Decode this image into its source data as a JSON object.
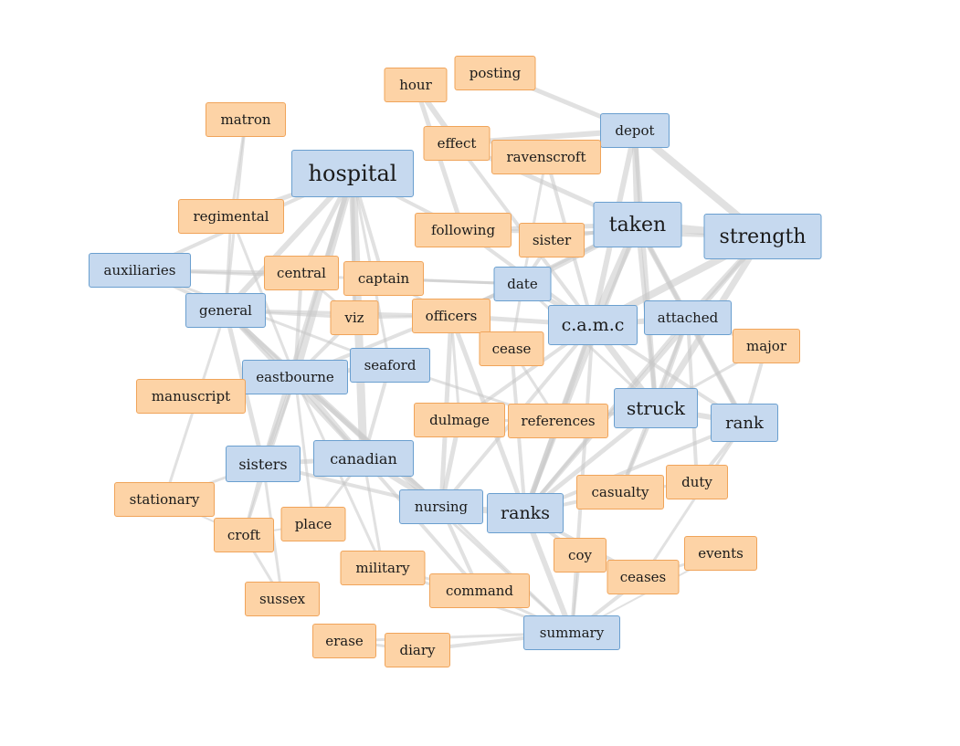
{
  "graph": {
    "colors": {
      "orange_fill": "#fdd3a6",
      "orange_border": "#f0a45a",
      "blue_fill": "#c6d9ef",
      "blue_border": "#6a9fcf",
      "edge": "#c8c8c8"
    },
    "nodes": [
      {
        "id": "hour",
        "label": "hour",
        "group": "orange"
      },
      {
        "id": "posting",
        "label": "posting",
        "group": "orange"
      },
      {
        "id": "matron",
        "label": "matron",
        "group": "orange"
      },
      {
        "id": "effect",
        "label": "effect",
        "group": "orange"
      },
      {
        "id": "depot",
        "label": "depot",
        "group": "blue"
      },
      {
        "id": "ravenscroft",
        "label": "ravenscroft",
        "group": "orange"
      },
      {
        "id": "hospital",
        "label": "hospital",
        "group": "blue"
      },
      {
        "id": "regimental",
        "label": "regimental",
        "group": "orange"
      },
      {
        "id": "following",
        "label": "following",
        "group": "orange"
      },
      {
        "id": "sister",
        "label": "sister",
        "group": "orange"
      },
      {
        "id": "taken",
        "label": "taken",
        "group": "blue"
      },
      {
        "id": "strength",
        "label": "strength",
        "group": "blue"
      },
      {
        "id": "auxiliaries",
        "label": "auxiliaries",
        "group": "blue"
      },
      {
        "id": "central",
        "label": "central",
        "group": "orange"
      },
      {
        "id": "captain",
        "label": "captain",
        "group": "orange"
      },
      {
        "id": "date",
        "label": "date",
        "group": "blue"
      },
      {
        "id": "general",
        "label": "general",
        "group": "blue"
      },
      {
        "id": "viz",
        "label": "viz",
        "group": "orange"
      },
      {
        "id": "officers",
        "label": "officers",
        "group": "orange"
      },
      {
        "id": "camc",
        "label": "c.a.m.c",
        "group": "blue"
      },
      {
        "id": "attached",
        "label": "attached",
        "group": "blue"
      },
      {
        "id": "major",
        "label": "major",
        "group": "orange"
      },
      {
        "id": "cease",
        "label": "cease",
        "group": "orange"
      },
      {
        "id": "seaford",
        "label": "seaford",
        "group": "blue"
      },
      {
        "id": "eastbourne",
        "label": "eastbourne",
        "group": "blue"
      },
      {
        "id": "manuscript",
        "label": "manuscript",
        "group": "orange"
      },
      {
        "id": "dulmage",
        "label": "dulmage",
        "group": "orange"
      },
      {
        "id": "references",
        "label": "references",
        "group": "orange"
      },
      {
        "id": "struck",
        "label": "struck",
        "group": "blue"
      },
      {
        "id": "rank",
        "label": "rank",
        "group": "blue"
      },
      {
        "id": "sisters",
        "label": "sisters",
        "group": "blue"
      },
      {
        "id": "canadian",
        "label": "canadian",
        "group": "blue"
      },
      {
        "id": "stationary",
        "label": "stationary",
        "group": "orange"
      },
      {
        "id": "casualty",
        "label": "casualty",
        "group": "orange"
      },
      {
        "id": "duty",
        "label": "duty",
        "group": "orange"
      },
      {
        "id": "nursing",
        "label": "nursing",
        "group": "blue"
      },
      {
        "id": "ranks",
        "label": "ranks",
        "group": "blue"
      },
      {
        "id": "croft",
        "label": "croft",
        "group": "orange"
      },
      {
        "id": "place",
        "label": "place",
        "group": "orange"
      },
      {
        "id": "coy",
        "label": "coy",
        "group": "orange"
      },
      {
        "id": "events",
        "label": "events",
        "group": "orange"
      },
      {
        "id": "ceases",
        "label": "ceases",
        "group": "orange"
      },
      {
        "id": "military",
        "label": "military",
        "group": "orange"
      },
      {
        "id": "command",
        "label": "command",
        "group": "orange"
      },
      {
        "id": "sussex",
        "label": "sussex",
        "group": "orange"
      },
      {
        "id": "summary",
        "label": "summary",
        "group": "blue"
      },
      {
        "id": "erase",
        "label": "erase",
        "group": "orange"
      },
      {
        "id": "diary",
        "label": "diary",
        "group": "orange"
      }
    ],
    "edges": [
      [
        "hour",
        "effect",
        6
      ],
      [
        "hour",
        "following",
        5
      ],
      [
        "posting",
        "depot",
        5
      ],
      [
        "effect",
        "depot",
        6
      ],
      [
        "effect",
        "taken",
        5
      ],
      [
        "effect",
        "camc",
        4
      ],
      [
        "matron",
        "regimental",
        3
      ],
      [
        "matron",
        "general",
        3
      ],
      [
        "ravenscroft",
        "camc",
        4
      ],
      [
        "ravenscroft",
        "date",
        3
      ],
      [
        "depot",
        "taken",
        7
      ],
      [
        "depot",
        "strength",
        8
      ],
      [
        "depot",
        "camc",
        6
      ],
      [
        "depot",
        "struck",
        5
      ],
      [
        "hospital",
        "regimental",
        5
      ],
      [
        "hospital",
        "auxiliaries",
        4
      ],
      [
        "hospital",
        "general",
        6
      ],
      [
        "hospital",
        "central",
        5
      ],
      [
        "hospital",
        "eastbourne",
        8
      ],
      [
        "hospital",
        "canadian",
        9
      ],
      [
        "hospital",
        "sisters",
        5
      ],
      [
        "hospital",
        "viz",
        4
      ],
      [
        "hospital",
        "following",
        4
      ],
      [
        "hospital",
        "seaford",
        3
      ],
      [
        "hospital",
        "captain",
        4
      ],
      [
        "regimental",
        "eastbourne",
        3
      ],
      [
        "regimental",
        "general",
        3
      ],
      [
        "following",
        "taken",
        5
      ],
      [
        "following",
        "camc",
        4
      ],
      [
        "following",
        "strength",
        4
      ],
      [
        "sister",
        "taken",
        4
      ],
      [
        "sister",
        "date",
        4
      ],
      [
        "taken",
        "strength",
        9
      ],
      [
        "taken",
        "camc",
        9
      ],
      [
        "taken",
        "attached",
        6
      ],
      [
        "taken",
        "struck",
        5
      ],
      [
        "taken",
        "date",
        6
      ],
      [
        "taken",
        "officers",
        4
      ],
      [
        "taken",
        "ranks",
        4
      ],
      [
        "taken",
        "rank",
        4
      ],
      [
        "strength",
        "camc",
        8
      ],
      [
        "strength",
        "struck",
        7
      ],
      [
        "strength",
        "attached",
        6
      ],
      [
        "strength",
        "ranks",
        5
      ],
      [
        "auxiliaries",
        "general",
        4
      ],
      [
        "auxiliaries",
        "central",
        4
      ],
      [
        "auxiliaries",
        "seaford",
        3
      ],
      [
        "auxiliaries",
        "date",
        3
      ],
      [
        "general",
        "eastbourne",
        6
      ],
      [
        "general",
        "canadian",
        5
      ],
      [
        "general",
        "sisters",
        5
      ],
      [
        "general",
        "nursing",
        4
      ],
      [
        "general",
        "stationary",
        3
      ],
      [
        "general",
        "officers",
        4
      ],
      [
        "central",
        "viz",
        3
      ],
      [
        "central",
        "eastbourne",
        4
      ],
      [
        "captain",
        "date",
        3
      ],
      [
        "captain",
        "officers",
        3
      ],
      [
        "date",
        "camc",
        5
      ],
      [
        "date",
        "eastbourne",
        4
      ],
      [
        "date",
        "cease",
        3
      ],
      [
        "date",
        "struck",
        3
      ],
      [
        "viz",
        "eastbourne",
        4
      ],
      [
        "viz",
        "officers",
        3
      ],
      [
        "viz",
        "general",
        3
      ],
      [
        "officers",
        "nursing",
        5
      ],
      [
        "officers",
        "ranks",
        5
      ],
      [
        "officers",
        "camc",
        5
      ],
      [
        "officers",
        "dulmage",
        3
      ],
      [
        "camc",
        "attached",
        6
      ],
      [
        "camc",
        "struck",
        7
      ],
      [
        "camc",
        "ranks",
        6
      ],
      [
        "camc",
        "rank",
        4
      ],
      [
        "camc",
        "references",
        4
      ],
      [
        "camc",
        "nursing",
        4
      ],
      [
        "camc",
        "dulmage",
        4
      ],
      [
        "camc",
        "summary",
        4
      ],
      [
        "attached",
        "major",
        4
      ],
      [
        "attached",
        "rank",
        6
      ],
      [
        "attached",
        "struck",
        5
      ],
      [
        "attached",
        "casualty",
        4
      ],
      [
        "attached",
        "duty",
        4
      ],
      [
        "attached",
        "ranks",
        4
      ],
      [
        "cease",
        "ranks",
        4
      ],
      [
        "cease",
        "references",
        3
      ],
      [
        "seaford",
        "eastbourne",
        5
      ],
      [
        "seaford",
        "canadian",
        4
      ],
      [
        "seaford",
        "references",
        3
      ],
      [
        "eastbourne",
        "canadian",
        6
      ],
      [
        "eastbourne",
        "sisters",
        5
      ],
      [
        "eastbourne",
        "manuscript",
        3
      ],
      [
        "eastbourne",
        "croft",
        3
      ],
      [
        "eastbourne",
        "nursing",
        5
      ],
      [
        "eastbourne",
        "place",
        3
      ],
      [
        "eastbourne",
        "military",
        3
      ],
      [
        "eastbourne",
        "summary",
        3
      ],
      [
        "dulmage",
        "nursing",
        5
      ],
      [
        "dulmage",
        "references",
        3
      ],
      [
        "references",
        "ranks",
        5
      ],
      [
        "references",
        "struck",
        4
      ],
      [
        "struck",
        "rank",
        6
      ],
      [
        "struck",
        "casualty",
        4
      ],
      [
        "struck",
        "ranks",
        5
      ],
      [
        "rank",
        "duty",
        4
      ],
      [
        "rank",
        "ranks",
        4
      ],
      [
        "rank",
        "ceases",
        3
      ],
      [
        "rank",
        "major",
        4
      ],
      [
        "sisters",
        "canadian",
        5
      ],
      [
        "sisters",
        "stationary",
        3
      ],
      [
        "sisters",
        "croft",
        3
      ],
      [
        "sisters",
        "sussex",
        3
      ],
      [
        "sisters",
        "nursing",
        4
      ],
      [
        "canadian",
        "nursing",
        6
      ],
      [
        "canadian",
        "military",
        3
      ],
      [
        "canadian",
        "place",
        3
      ],
      [
        "canadian",
        "command",
        4
      ],
      [
        "nursing",
        "ranks",
        7
      ],
      [
        "nursing",
        "command",
        4
      ],
      [
        "nursing",
        "summary",
        3
      ],
      [
        "ranks",
        "casualty",
        4
      ],
      [
        "ranks",
        "summary",
        6
      ],
      [
        "ranks",
        "coy",
        4
      ],
      [
        "ranks",
        "ceases",
        4
      ],
      [
        "coy",
        "summary",
        3
      ],
      [
        "ceases",
        "events",
        3
      ],
      [
        "ceases",
        "summary",
        4
      ],
      [
        "military",
        "command",
        3
      ],
      [
        "military",
        "summary",
        3
      ],
      [
        "command",
        "summary",
        3
      ],
      [
        "summary",
        "diary",
        4
      ],
      [
        "summary",
        "erase",
        3
      ],
      [
        "erase",
        "diary",
        3
      ],
      [
        "croft",
        "sussex",
        3
      ],
      [
        "croft",
        "place",
        2
      ],
      [
        "stationary",
        "croft",
        2
      ],
      [
        "casualty",
        "duty",
        3
      ],
      [
        "summary",
        "events",
        2
      ],
      [
        "major",
        "struck",
        3
      ]
    ]
  }
}
